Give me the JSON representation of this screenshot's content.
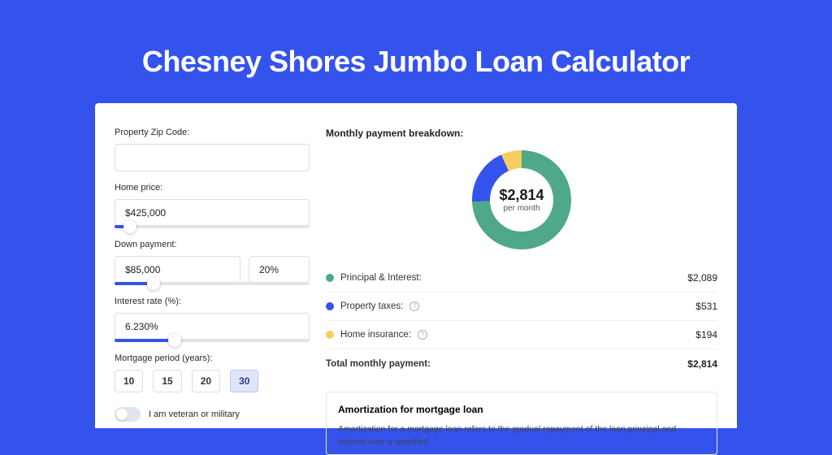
{
  "page": {
    "title": "Chesney Shores Jumbo Loan Calculator",
    "background_color": "#3453ed"
  },
  "form": {
    "zip": {
      "label": "Property Zip Code:",
      "value": ""
    },
    "home_price": {
      "label": "Home price:",
      "value": "$425,000",
      "slider_pct": 8
    },
    "down_payment": {
      "label": "Down payment:",
      "amount": "$85,000",
      "percent": "20%",
      "slider_pct": 20
    },
    "interest_rate": {
      "label": "Interest rate (%):",
      "value": "6.230%",
      "slider_pct": 31
    },
    "mortgage_period": {
      "label": "Mortgage period (years):",
      "options": [
        "10",
        "15",
        "20",
        "30"
      ],
      "selected_index": 3
    },
    "veteran": {
      "label": "I am veteran or military",
      "checked": false
    }
  },
  "breakdown": {
    "title": "Monthly payment breakdown:",
    "center_amount": "$2,814",
    "center_sub": "per month",
    "donut": {
      "radius": 50,
      "stroke_width": 22,
      "slices": [
        {
          "key": "pi",
          "color": "#4fa88b",
          "pct": 74.24
        },
        {
          "key": "taxes",
          "color": "#3453ed",
          "pct": 18.87
        },
        {
          "key": "ins",
          "color": "#f4cf5d",
          "pct": 6.89
        }
      ]
    },
    "items": [
      {
        "key": "pi",
        "label": "Principal & Interest:",
        "value": "$2,089",
        "color": "#4fa88b",
        "info": false
      },
      {
        "key": "taxes",
        "label": "Property taxes:",
        "value": "$531",
        "color": "#3453ed",
        "info": true
      },
      {
        "key": "ins",
        "label": "Home insurance:",
        "value": "$194",
        "color": "#f4cf5d",
        "info": true
      }
    ],
    "total": {
      "label": "Total monthly payment:",
      "value": "$2,814"
    }
  },
  "amortization": {
    "title": "Amortization for mortgage loan",
    "text": "Amortization for a mortgage loan refers to the gradual repayment of the loan principal and interest over a specified"
  }
}
